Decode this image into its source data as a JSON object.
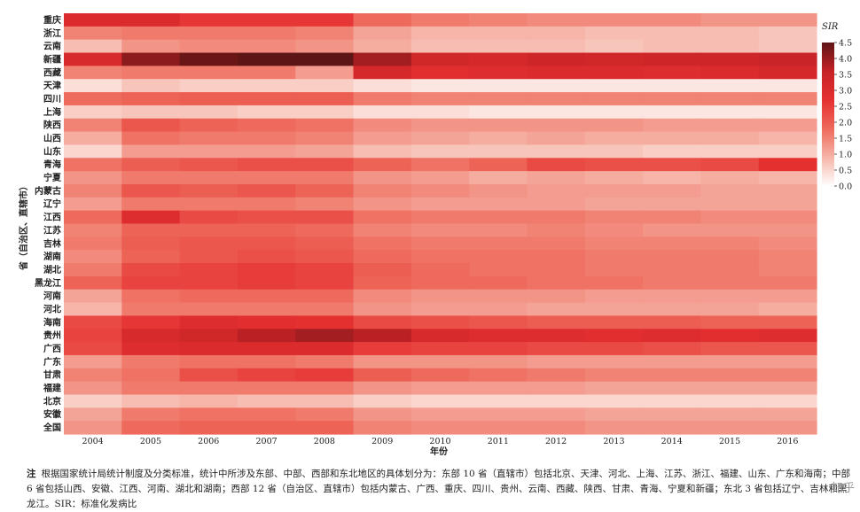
{
  "chart_data": {
    "type": "heatmap",
    "title": "",
    "xlabel": "年份",
    "ylabel": "省（自治区、直辖市）",
    "x": [
      "2004",
      "2005",
      "2006",
      "2007",
      "2008",
      "2009",
      "2010",
      "2011",
      "2012",
      "2013",
      "2014",
      "2015",
      "2016"
    ],
    "y": [
      "重庆",
      "浙江",
      "云南",
      "新疆",
      "西藏",
      "天津",
      "四川",
      "上海",
      "陕西",
      "山西",
      "山东",
      "青海",
      "宁夏",
      "内蒙古",
      "辽宁",
      "江西",
      "江苏",
      "吉林",
      "湖南",
      "湖北",
      "黑龙江",
      "河南",
      "河北",
      "海南",
      "贵州",
      "广西",
      "广东",
      "甘肃",
      "福建",
      "北京",
      "安徽",
      "全国"
    ],
    "colorbar": {
      "title": "SIR",
      "ticks": [
        "0.0",
        "0.5",
        "1.0",
        "1.5",
        "2.0",
        "2.5",
        "3.0",
        "3.5",
        "4.0",
        "4.5"
      ],
      "min": 0,
      "max": 4.5,
      "colors": [
        "#ffffff",
        "#f6b5a8",
        "#ee6a5c",
        "#e53030",
        "#c62226",
        "#5e1515"
      ]
    },
    "values": [
      [
        3.0,
        3.0,
        2.6,
        2.6,
        2.6,
        1.8,
        1.6,
        1.5,
        1.4,
        1.4,
        1.4,
        1.3,
        1.3
      ],
      [
        1.5,
        1.6,
        1.6,
        1.6,
        1.5,
        1.1,
        0.9,
        0.9,
        0.9,
        0.8,
        0.8,
        0.8,
        0.7
      ],
      [
        0.8,
        1.3,
        1.4,
        1.4,
        1.3,
        1.0,
        0.8,
        0.8,
        0.8,
        0.7,
        0.8,
        0.8,
        0.7
      ],
      [
        3.1,
        4.1,
        4.4,
        4.5,
        4.5,
        3.9,
        3.3,
        3.2,
        3.4,
        3.3,
        3.4,
        3.4,
        3.5
      ],
      [
        1.5,
        1.6,
        1.6,
        1.6,
        1.2,
        3.2,
        2.8,
        2.9,
        3.0,
        3.0,
        2.9,
        3.0,
        3.2
      ],
      [
        0.4,
        0.7,
        0.6,
        0.6,
        0.6,
        0.4,
        0.3,
        0.3,
        0.3,
        0.3,
        0.3,
        0.3,
        0.3
      ],
      [
        1.8,
        1.9,
        2.0,
        2.0,
        2.0,
        1.6,
        1.5,
        1.5,
        1.5,
        1.5,
        1.5,
        1.5,
        1.5
      ],
      [
        0.6,
        0.7,
        0.7,
        0.6,
        0.6,
        0.4,
        0.4,
        0.3,
        0.3,
        0.3,
        0.3,
        0.3,
        0.3
      ],
      [
        1.5,
        2.1,
        1.9,
        1.8,
        1.7,
        1.4,
        1.3,
        1.3,
        1.3,
        1.3,
        1.2,
        1.2,
        1.2
      ],
      [
        1.0,
        1.7,
        1.6,
        1.6,
        1.5,
        1.2,
        1.1,
        1.0,
        1.1,
        1.0,
        1.0,
        1.0,
        0.9
      ],
      [
        0.5,
        1.2,
        1.2,
        1.2,
        1.1,
        0.8,
        0.7,
        0.7,
        0.7,
        0.7,
        0.6,
        0.6,
        0.6
      ],
      [
        1.7,
        2.0,
        2.1,
        2.2,
        2.2,
        1.9,
        1.7,
        1.9,
        2.3,
        2.2,
        2.2,
        2.3,
        2.7
      ],
      [
        1.3,
        1.6,
        1.6,
        1.6,
        1.6,
        1.3,
        1.2,
        1.0,
        1.1,
        1.0,
        0.9,
        1.0,
        0.9
      ],
      [
        1.5,
        2.1,
        2.0,
        2.1,
        1.9,
        1.5,
        1.4,
        1.3,
        1.2,
        1.2,
        1.2,
        1.1,
        1.1
      ],
      [
        1.2,
        1.6,
        1.6,
        1.6,
        1.5,
        1.3,
        1.2,
        1.2,
        1.2,
        1.1,
        1.1,
        1.1,
        1.1
      ],
      [
        1.8,
        2.9,
        2.3,
        2.2,
        2.2,
        1.7,
        1.6,
        1.6,
        1.6,
        1.5,
        1.5,
        1.4,
        1.4
      ],
      [
        1.5,
        1.9,
        1.9,
        1.9,
        1.8,
        1.5,
        1.4,
        1.4,
        1.5,
        1.4,
        1.3,
        1.3,
        1.3
      ],
      [
        1.6,
        2.0,
        2.1,
        2.1,
        2.0,
        1.7,
        1.6,
        1.6,
        1.6,
        1.5,
        1.5,
        1.5,
        1.4
      ],
      [
        1.4,
        1.9,
        2.1,
        2.2,
        2.1,
        1.8,
        1.7,
        1.7,
        1.7,
        1.6,
        1.6,
        1.6,
        1.5
      ],
      [
        1.6,
        2.3,
        2.4,
        2.5,
        2.4,
        2.0,
        1.8,
        1.7,
        1.7,
        1.6,
        1.6,
        1.6,
        1.5
      ],
      [
        1.9,
        2.4,
        2.4,
        2.5,
        2.4,
        1.9,
        1.8,
        1.8,
        1.7,
        1.7,
        1.6,
        1.6,
        1.6
      ],
      [
        1.1,
        1.7,
        1.8,
        1.8,
        1.8,
        1.4,
        1.3,
        1.3,
        1.3,
        1.2,
        1.2,
        1.2,
        1.2
      ],
      [
        0.9,
        1.6,
        1.6,
        1.6,
        1.6,
        1.3,
        1.2,
        1.2,
        1.1,
        1.1,
        1.1,
        1.1,
        1.0
      ],
      [
        2.3,
        2.6,
        2.9,
        2.8,
        2.7,
        2.3,
        2.2,
        2.1,
        2.0,
        2.0,
        2.0,
        1.9,
        1.9
      ],
      [
        2.4,
        3.1,
        3.3,
        3.7,
        3.9,
        3.7,
        3.1,
        2.9,
        2.9,
        2.8,
        2.9,
        2.8,
        2.9
      ],
      [
        2.3,
        2.9,
        3.0,
        3.0,
        3.0,
        2.5,
        2.4,
        2.4,
        2.3,
        2.3,
        2.2,
        2.1,
        2.1
      ],
      [
        1.2,
        1.6,
        1.7,
        1.7,
        1.6,
        1.3,
        1.3,
        1.3,
        1.2,
        1.2,
        1.2,
        1.2,
        1.2
      ],
      [
        1.5,
        1.7,
        2.2,
        2.4,
        2.5,
        2.0,
        1.8,
        1.7,
        1.6,
        1.5,
        1.5,
        1.5,
        1.5
      ],
      [
        1.3,
        1.6,
        1.6,
        1.6,
        1.6,
        1.3,
        1.2,
        1.2,
        1.2,
        1.1,
        1.1,
        1.1,
        1.1
      ],
      [
        0.6,
        0.8,
        0.9,
        0.8,
        0.8,
        0.6,
        0.5,
        0.5,
        0.5,
        0.5,
        0.5,
        0.5,
        0.5
      ],
      [
        1.1,
        1.6,
        1.7,
        1.7,
        1.6,
        1.3,
        1.2,
        1.2,
        1.2,
        1.1,
        1.1,
        1.1,
        1.1
      ],
      [
        1.3,
        1.8,
        1.9,
        1.9,
        1.9,
        1.5,
        1.4,
        1.4,
        1.4,
        1.3,
        1.3,
        1.3,
        1.3
      ]
    ]
  },
  "note": {
    "label": "注",
    "text": "根据国家统计局统计制度及分类标准，统计中所涉及东部、中部、西部和东北地区的具体划分为：东部 10 省（直辖市）包括北京、天津、河北、上海、江苏、浙江、福建、山东、广东和海南；中部 6 省包括山西、安徽、江西、河南、湖北和湖南；西部 12 省（自治区、直辖市）包括内蒙古、广西、重庆、四川、贵州、云南、西藏、陕西、甘肃、青海、宁夏和新疆；东北 3 省包括辽宁、吉林和黑龙江。SIR：标准化发病比"
  },
  "watermark": "知乎"
}
